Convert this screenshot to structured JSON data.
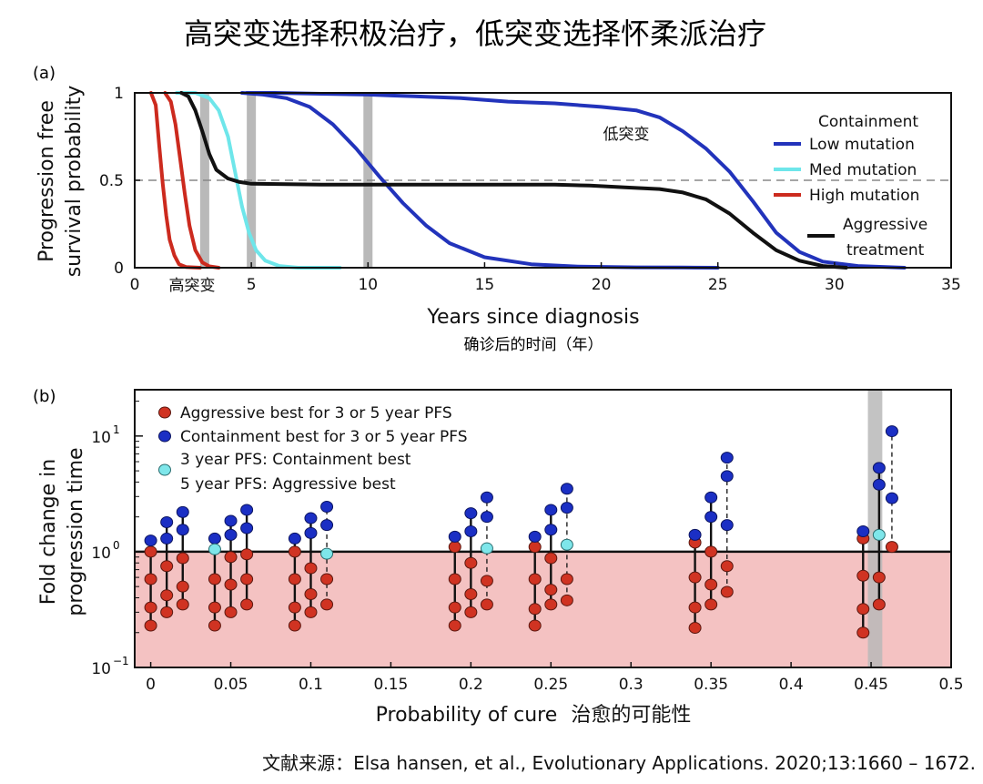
{
  "title": "高突变选择积极治疗，低突变选择怀柔派治疗",
  "source": "文献来源：Elsa hansen, et al., Evolutionary Applications. 2020;13:1660 – 1672.",
  "colors": {
    "low": "#2233bb",
    "med": "#6ee6ea",
    "high": "#cc2a1e",
    "aggressive": "#111111",
    "shade": "#b9b9b9",
    "pink": "#f4c2c2",
    "red_dot": "#d03322",
    "blue_dot": "#1b2fc4",
    "cyan_dot": "#7ee6ea"
  },
  "chart_data": [
    {
      "type": "line",
      "panel_label": "(a)",
      "xlabel": "Years since diagnosis",
      "xlabel_cn": "确诊后的时间（年）",
      "ylabel": [
        "Progression free",
        "survival probability"
      ],
      "xlim": [
        0,
        35
      ],
      "ylim": [
        0,
        1
      ],
      "xticks": [
        "0",
        "5",
        "10",
        "15",
        "20",
        "25",
        "30",
        "35"
      ],
      "xtick_values": [
        0,
        5,
        10,
        15,
        20,
        25,
        30,
        35
      ],
      "yticks": [
        "0",
        "0.5",
        "1"
      ],
      "ytick_values": [
        0,
        0.5,
        1
      ],
      "reference_line": 0.5,
      "shaded_years": [
        3,
        5,
        10
      ],
      "legend_title": "Containment",
      "annotations": {
        "low": "低突变",
        "high": "高突变"
      },
      "series": [
        {
          "name": "Low mutation",
          "color_key": "low",
          "x": [
            4.8,
            6,
            8,
            10,
            11,
            12,
            14,
            16,
            18,
            20,
            21.5,
            22.5,
            23.5,
            24.5,
            25.5,
            26.5,
            27.5,
            28.5,
            29.5,
            31,
            33
          ],
          "y": [
            1,
            1,
            0.995,
            0.99,
            0.985,
            0.98,
            0.97,
            0.95,
            0.94,
            0.92,
            0.9,
            0.86,
            0.78,
            0.68,
            0.55,
            0.38,
            0.2,
            0.09,
            0.035,
            0.01,
            0
          ]
        },
        {
          "name": "Low mutation",
          "color_key": "low",
          "x": [
            4.6,
            5.5,
            6.5,
            7.5,
            8.5,
            9.5,
            10.5,
            11.5,
            12.5,
            13.5,
            15,
            17,
            19,
            21.5,
            23.5,
            25
          ],
          "y": [
            1,
            0.99,
            0.97,
            0.92,
            0.82,
            0.68,
            0.52,
            0.37,
            0.24,
            0.14,
            0.06,
            0.02,
            0.007,
            0.002,
            0.001,
            0
          ]
        },
        {
          "name": "Med mutation",
          "color_key": "med",
          "x": [
            1.8,
            2.6,
            3.2,
            3.6,
            4.0,
            4.3,
            4.6,
            4.9,
            5.2,
            5.6,
            6.2,
            7.0,
            8.8
          ],
          "y": [
            1,
            1,
            0.97,
            0.9,
            0.75,
            0.55,
            0.35,
            0.2,
            0.1,
            0.04,
            0.01,
            0,
            0
          ]
        },
        {
          "name": "High mutation",
          "color_key": "high",
          "x": [
            0.7,
            0.9,
            1.05,
            1.2,
            1.35,
            1.5,
            1.7,
            1.9,
            2.2,
            2.8
          ],
          "y": [
            1,
            0.93,
            0.7,
            0.48,
            0.3,
            0.16,
            0.07,
            0.02,
            0.004,
            0
          ]
        },
        {
          "name": "High mutation",
          "color_key": "high",
          "x": [
            1.3,
            1.55,
            1.75,
            1.95,
            2.15,
            2.35,
            2.6,
            2.9,
            3.2,
            3.6
          ],
          "y": [
            1,
            0.95,
            0.82,
            0.62,
            0.42,
            0.24,
            0.1,
            0.03,
            0.008,
            0
          ]
        },
        {
          "name": "Aggressive treatment",
          "color_key": "aggressive",
          "x": [
            2,
            2.3,
            2.6,
            2.9,
            3.2,
            3.5,
            4.0,
            4.5,
            5.0,
            8,
            12,
            16,
            18,
            19.5,
            21,
            22.5,
            23.5,
            24.5,
            25.5,
            26.5,
            27.5,
            28.5,
            29.5,
            30.5
          ],
          "y": [
            1,
            0.98,
            0.9,
            0.78,
            0.65,
            0.56,
            0.51,
            0.49,
            0.48,
            0.475,
            0.475,
            0.475,
            0.475,
            0.47,
            0.46,
            0.45,
            0.43,
            0.39,
            0.31,
            0.2,
            0.1,
            0.04,
            0.01,
            0
          ]
        }
      ],
      "legend": [
        "Low mutation",
        "Med mutation",
        "High mutation",
        "Aggressive",
        "treatment"
      ]
    },
    {
      "type": "scatter",
      "panel_label": "(b)",
      "xlabel": "Probability of cure",
      "xlabel_cn": "治愈的可能性",
      "ylabel": [
        "Fold change in",
        "progression time"
      ],
      "xlim": [
        -0.01,
        0.5
      ],
      "ylim_log10": [
        -1,
        1.4
      ],
      "xticks": [
        "0",
        "0.05",
        "0.1",
        "0.15",
        "0.2",
        "0.25",
        "0.3",
        "0.35",
        "0.4",
        "0.45",
        "0.5"
      ],
      "xtick_values": [
        0,
        0.05,
        0.1,
        0.15,
        0.2,
        0.25,
        0.3,
        0.35,
        0.4,
        0.45,
        0.5
      ],
      "ytick_base": [
        "10",
        "10",
        "10"
      ],
      "ytick_exp": [
        "−1",
        "0",
        "1"
      ],
      "ytick_log10": [
        -1,
        0,
        1
      ],
      "reference_value": 1,
      "shade_x": [
        0.448,
        0.457
      ],
      "legend": [
        {
          "label": "Aggressive best for 3 or 5 year PFS",
          "color_key": "red_dot"
        },
        {
          "label": "Containment best for 3 or 5 year PFS",
          "color_key": "blue_dot"
        },
        {
          "label": "3 year PFS: Containment best",
          "color_key": "cyan_dot"
        },
        {
          "label": "5 year PFS: Aggressive best",
          "color_key": "none"
        }
      ],
      "groups": [
        {
          "x": 0.0,
          "dashed": false,
          "red": [
            1.0,
            0.58,
            0.33,
            0.23
          ],
          "blue": [
            1.25
          ],
          "cyan": []
        },
        {
          "x": 0.01,
          "dashed": false,
          "red": [
            0.75,
            0.42,
            0.3
          ],
          "blue": [
            1.3,
            1.8
          ],
          "cyan": []
        },
        {
          "x": 0.02,
          "dashed": false,
          "red": [
            0.88,
            0.5,
            0.35
          ],
          "blue": [
            1.55,
            2.2
          ],
          "cyan": []
        },
        {
          "x": 0.04,
          "dashed": false,
          "red": [
            0.58,
            0.33,
            0.23
          ],
          "blue": [
            1.3
          ],
          "cyan": [
            1.05
          ]
        },
        {
          "x": 0.05,
          "dashed": false,
          "red": [
            0.9,
            0.52,
            0.3
          ],
          "blue": [
            1.4,
            1.85
          ],
          "cyan": []
        },
        {
          "x": 0.06,
          "dashed": false,
          "red": [
            0.95,
            0.58,
            0.35
          ],
          "blue": [
            1.6,
            2.3
          ],
          "cyan": []
        },
        {
          "x": 0.09,
          "dashed": false,
          "red": [
            1.0,
            0.58,
            0.33,
            0.23
          ],
          "blue": [
            1.3
          ],
          "cyan": []
        },
        {
          "x": 0.1,
          "dashed": false,
          "red": [
            0.72,
            0.43,
            0.3
          ],
          "blue": [
            1.45,
            1.95
          ],
          "cyan": []
        },
        {
          "x": 0.11,
          "dashed": true,
          "red": [
            0.58,
            0.35
          ],
          "blue": [
            1.7,
            2.45
          ],
          "cyan": [
            0.96
          ]
        },
        {
          "x": 0.19,
          "dashed": false,
          "red": [
            1.1,
            0.58,
            0.33,
            0.23
          ],
          "blue": [
            1.35
          ],
          "cyan": []
        },
        {
          "x": 0.2,
          "dashed": false,
          "red": [
            0.8,
            0.43,
            0.3
          ],
          "blue": [
            1.5,
            2.15
          ],
          "cyan": []
        },
        {
          "x": 0.21,
          "dashed": true,
          "red": [
            0.56,
            0.35
          ],
          "blue": [
            2.0,
            2.95
          ],
          "cyan": [
            1.07
          ]
        },
        {
          "x": 0.24,
          "dashed": false,
          "red": [
            1.1,
            0.58,
            0.32,
            0.23
          ],
          "blue": [
            1.35
          ],
          "cyan": []
        },
        {
          "x": 0.25,
          "dashed": false,
          "red": [
            0.88,
            0.47,
            0.35
          ],
          "blue": [
            1.55,
            2.3
          ],
          "cyan": []
        },
        {
          "x": 0.26,
          "dashed": true,
          "red": [
            0.58,
            0.38
          ],
          "blue": [
            2.4,
            3.5
          ],
          "cyan": [
            1.15
          ]
        },
        {
          "x": 0.34,
          "dashed": false,
          "red": [
            1.2,
            0.6,
            0.33,
            0.22
          ],
          "blue": [
            1.4
          ],
          "cyan": []
        },
        {
          "x": 0.35,
          "dashed": false,
          "red": [
            1.0,
            0.52,
            0.35
          ],
          "blue": [
            2.0,
            2.95
          ],
          "cyan": []
        },
        {
          "x": 0.36,
          "dashed": true,
          "red": [
            0.75,
            0.45
          ],
          "blue": [
            1.7,
            4.5,
            6.5
          ],
          "cyan": []
        },
        {
          "x": 0.445,
          "dashed": false,
          "red": [
            1.3,
            0.62,
            0.32,
            0.2
          ],
          "blue": [
            1.5
          ],
          "cyan": []
        },
        {
          "x": 0.455,
          "dashed": false,
          "red": [
            0.6,
            0.35
          ],
          "blue": [
            3.8,
            5.3
          ],
          "cyan": [
            1.4
          ]
        },
        {
          "x": 0.463,
          "dashed": true,
          "red": [
            1.1
          ],
          "blue": [
            2.9,
            11.0
          ],
          "cyan": []
        }
      ]
    }
  ]
}
